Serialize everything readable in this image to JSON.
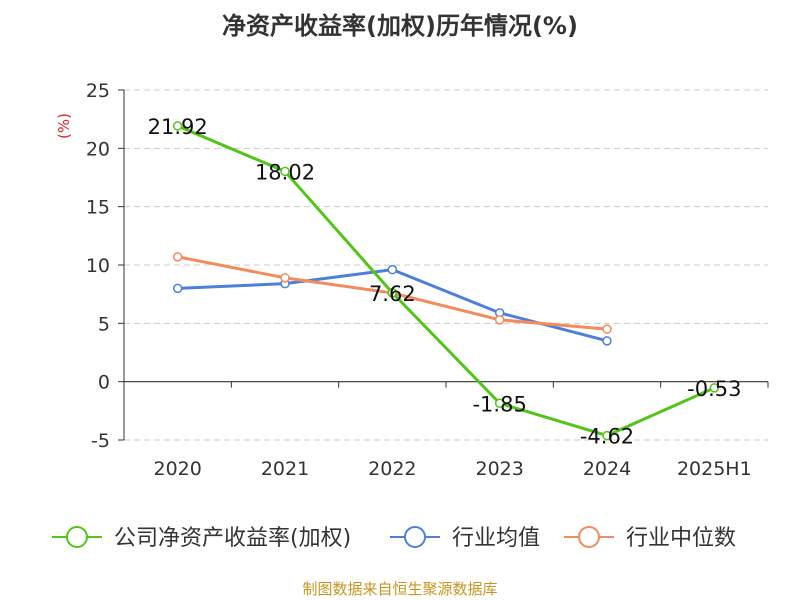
{
  "page": {
    "title": "净资产收益率(加权)历年情况(%)",
    "source_note": "制图数据来自恒生聚源数据库"
  },
  "colors": {
    "accent_green": "#52c41a",
    "blue": "#4e7fd9",
    "orange": "#f28c5c",
    "unit_red": "#d9232a"
  },
  "chart_data": {
    "type": "line",
    "title": "净资产收益率(加权)历年情况(%)",
    "ylabel": "(%)",
    "xlabel": "",
    "categories": [
      "2020",
      "2021",
      "2022",
      "2023",
      "2024",
      "2025H1"
    ],
    "ylim": [
      -5,
      25
    ],
    "yticks": [
      -5,
      0,
      5,
      10,
      15,
      20,
      25
    ],
    "grid": true,
    "legend_position": "bottom",
    "series": [
      {
        "name": "公司净资产收益率(加权)",
        "color": "#52c41a",
        "values": [
          21.92,
          18.02,
          7.62,
          -1.85,
          -4.62,
          -0.53
        ],
        "labels": [
          "21.92",
          "18.02",
          "7.62",
          "-1.85",
          "-4.62",
          "-0.53"
        ]
      },
      {
        "name": "行业均值",
        "color": "#4e7fd9",
        "values": [
          8.0,
          8.4,
          9.6,
          5.9,
          3.5,
          null
        ]
      },
      {
        "name": "行业中位数",
        "color": "#f28c5c",
        "values": [
          10.7,
          8.9,
          7.6,
          5.3,
          4.5,
          null
        ]
      }
    ]
  }
}
